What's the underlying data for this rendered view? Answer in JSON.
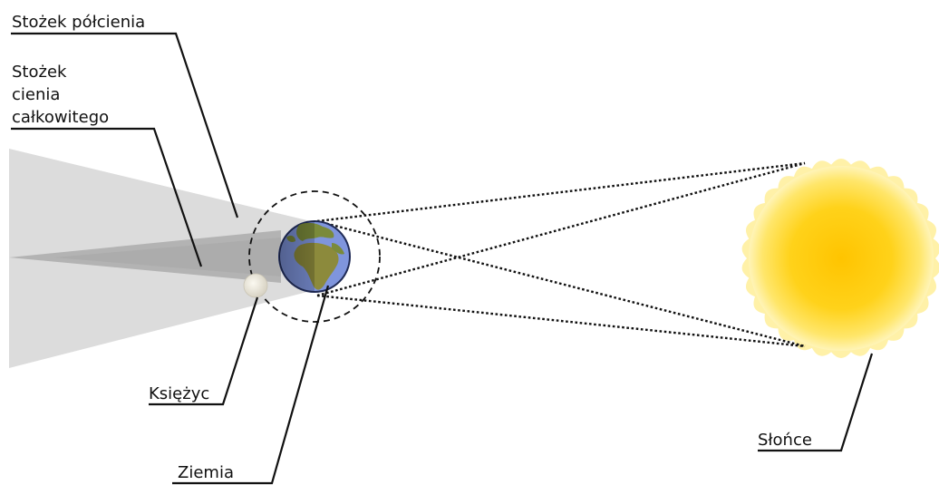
{
  "labels": {
    "penumbra": "Stożek półcienia",
    "umbra_line1": "Stożek",
    "umbra_line2": "cienia",
    "umbra_line3": "całkowitego",
    "moon": "Księżyc",
    "earth": "Ziemia",
    "sun": "Słońce"
  },
  "colors": {
    "sun_core": "#ffc800",
    "sun_edge": "#fff0a0",
    "earth_ocean": "#7f95dd",
    "earth_land": "#7a8a3a",
    "penumbra": "#d9d9d9",
    "umbra": "#a8a8a8",
    "moon": "#ece8da"
  }
}
